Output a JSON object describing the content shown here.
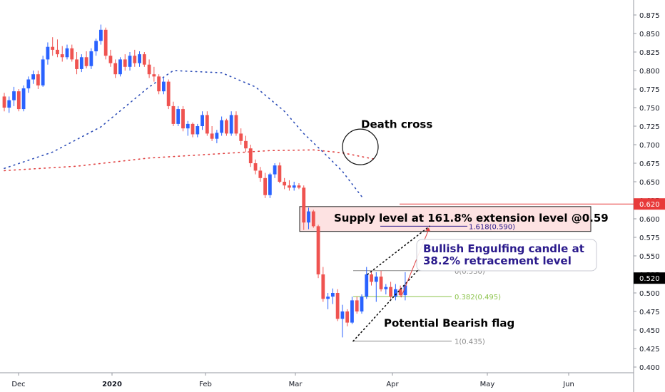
{
  "chart_data": {
    "type": "candlestick",
    "colors": {
      "up": "#2962ff",
      "down": "#ef5350",
      "ma_fast": "#2f4fb8",
      "ma_slow": "#e04040",
      "fib_green": "#8bc34a",
      "fib_gray": "#888888",
      "fib_purple": "#2a1a8c",
      "supply_fill": "#fde2e2",
      "tag_red": "#e83a3a"
    },
    "y_axis": {
      "ticks": [
        "0.875",
        "0.850",
        "0.825",
        "0.800",
        "0.775",
        "0.750",
        "0.725",
        "0.700",
        "0.675",
        "0.650",
        "0.625",
        "0.600",
        "0.575",
        "0.550",
        "0.525",
        "0.500",
        "0.475",
        "0.450",
        "0.425",
        "0.400"
      ],
      "ylim": [
        0.39,
        0.885
      ]
    },
    "x_axis": {
      "ticks": [
        {
          "label": "Dec",
          "bold": false
        },
        {
          "label": "2020",
          "bold": true
        },
        {
          "label": "Feb",
          "bold": false
        },
        {
          "label": "Mar",
          "bold": false
        },
        {
          "label": "Apr",
          "bold": false
        },
        {
          "label": "May",
          "bold": false
        },
        {
          "label": "Jun",
          "bold": false
        }
      ]
    },
    "price_tags": [
      {
        "label": "0.620",
        "value": 0.62,
        "color": "#e83a3a"
      },
      {
        "label": "0.520",
        "value": 0.52,
        "color": "#000000"
      }
    ],
    "candles": [
      [
        0.765,
        0.77,
        0.745,
        0.75
      ],
      [
        0.75,
        0.765,
        0.743,
        0.76
      ],
      [
        0.76,
        0.778,
        0.752,
        0.772
      ],
      [
        0.772,
        0.775,
        0.745,
        0.748
      ],
      [
        0.748,
        0.78,
        0.745,
        0.776
      ],
      [
        0.776,
        0.792,
        0.77,
        0.788
      ],
      [
        0.788,
        0.8,
        0.782,
        0.795
      ],
      [
        0.795,
        0.8,
        0.775,
        0.78
      ],
      [
        0.78,
        0.82,
        0.778,
        0.815
      ],
      [
        0.815,
        0.838,
        0.808,
        0.832
      ],
      [
        0.832,
        0.845,
        0.82,
        0.828
      ],
      [
        0.828,
        0.842,
        0.818,
        0.822
      ],
      [
        0.822,
        0.833,
        0.812,
        0.818
      ],
      [
        0.818,
        0.835,
        0.815,
        0.83
      ],
      [
        0.83,
        0.835,
        0.812,
        0.815
      ],
      [
        0.815,
        0.825,
        0.795,
        0.802
      ],
      [
        0.802,
        0.822,
        0.798,
        0.818
      ],
      [
        0.818,
        0.826,
        0.803,
        0.806
      ],
      [
        0.806,
        0.83,
        0.802,
        0.826
      ],
      [
        0.826,
        0.843,
        0.82,
        0.84
      ],
      [
        0.84,
        0.862,
        0.835,
        0.855
      ],
      [
        0.855,
        0.858,
        0.815,
        0.82
      ],
      [
        0.82,
        0.828,
        0.805,
        0.81
      ],
      [
        0.81,
        0.815,
        0.79,
        0.795
      ],
      [
        0.795,
        0.818,
        0.792,
        0.815
      ],
      [
        0.815,
        0.822,
        0.8,
        0.805
      ],
      [
        0.805,
        0.825,
        0.8,
        0.82
      ],
      [
        0.82,
        0.828,
        0.805,
        0.81
      ],
      [
        0.81,
        0.826,
        0.805,
        0.822
      ],
      [
        0.822,
        0.825,
        0.805,
        0.808
      ],
      [
        0.808,
        0.815,
        0.79,
        0.795
      ],
      [
        0.795,
        0.805,
        0.785,
        0.792
      ],
      [
        0.792,
        0.795,
        0.768,
        0.772
      ],
      [
        0.772,
        0.79,
        0.768,
        0.785
      ],
      [
        0.785,
        0.788,
        0.748,
        0.752
      ],
      [
        0.752,
        0.758,
        0.725,
        0.728
      ],
      [
        0.728,
        0.752,
        0.725,
        0.748
      ],
      [
        0.748,
        0.752,
        0.718,
        0.722
      ],
      [
        0.722,
        0.732,
        0.712,
        0.728
      ],
      [
        0.728,
        0.73,
        0.71,
        0.714
      ],
      [
        0.714,
        0.728,
        0.71,
        0.725
      ],
      [
        0.725,
        0.745,
        0.72,
        0.74
      ],
      [
        0.74,
        0.745,
        0.712,
        0.715
      ],
      [
        0.715,
        0.725,
        0.705,
        0.708
      ],
      [
        0.708,
        0.72,
        0.702,
        0.716
      ],
      [
        0.716,
        0.738,
        0.712,
        0.733
      ],
      [
        0.733,
        0.735,
        0.712,
        0.715
      ],
      [
        0.715,
        0.745,
        0.712,
        0.74
      ],
      [
        0.74,
        0.745,
        0.712,
        0.715
      ],
      [
        0.715,
        0.722,
        0.7,
        0.705
      ],
      [
        0.705,
        0.712,
        0.69,
        0.695
      ],
      [
        0.695,
        0.7,
        0.67,
        0.675
      ],
      [
        0.675,
        0.68,
        0.66,
        0.665
      ],
      [
        0.665,
        0.67,
        0.65,
        0.655
      ],
      [
        0.655,
        0.662,
        0.628,
        0.632
      ],
      [
        0.632,
        0.662,
        0.628,
        0.66
      ],
      [
        0.66,
        0.675,
        0.655,
        0.672
      ],
      [
        0.672,
        0.676,
        0.648,
        0.65
      ],
      [
        0.65,
        0.655,
        0.64,
        0.645
      ],
      [
        0.645,
        0.652,
        0.638,
        0.642
      ],
      [
        0.642,
        0.65,
        0.638,
        0.645
      ],
      [
        0.645,
        0.648,
        0.64,
        0.642
      ],
      [
        0.642,
        0.645,
        0.585,
        0.595
      ],
      [
        0.595,
        0.615,
        0.586,
        0.61
      ],
      [
        0.61,
        0.612,
        0.588,
        0.59
      ],
      [
        0.59,
        0.592,
        0.52,
        0.525
      ],
      [
        0.525,
        0.535,
        0.488,
        0.492
      ],
      [
        0.492,
        0.5,
        0.478,
        0.495
      ],
      [
        0.495,
        0.506,
        0.485,
        0.5
      ],
      [
        0.5,
        0.505,
        0.462,
        0.465
      ],
      [
        0.465,
        0.484,
        0.44,
        0.475
      ],
      [
        0.475,
        0.478,
        0.455,
        0.46
      ],
      [
        0.46,
        0.495,
        0.458,
        0.49
      ],
      [
        0.49,
        0.495,
        0.472,
        0.475
      ],
      [
        0.475,
        0.498,
        0.472,
        0.495
      ],
      [
        0.495,
        0.535,
        0.492,
        0.525
      ],
      [
        0.525,
        0.53,
        0.51,
        0.515
      ],
      [
        0.515,
        0.528,
        0.488,
        0.522
      ],
      [
        0.522,
        0.53,
        0.502,
        0.505
      ],
      [
        0.505,
        0.512,
        0.498,
        0.508
      ],
      [
        0.508,
        0.515,
        0.492,
        0.495
      ],
      [
        0.495,
        0.512,
        0.49,
        0.505
      ],
      [
        0.505,
        0.51,
        0.495,
        0.497
      ],
      [
        0.497,
        0.528,
        0.49,
        0.51
      ]
    ],
    "ma_fast": [
      [
        0,
        0.668
      ],
      [
        10,
        0.69
      ],
      [
        20,
        0.724
      ],
      [
        30,
        0.778
      ],
      [
        35,
        0.8
      ],
      [
        45,
        0.797
      ],
      [
        52,
        0.778
      ],
      [
        58,
        0.745
      ],
      [
        62,
        0.715
      ],
      [
        66,
        0.69
      ],
      [
        70,
        0.664
      ],
      [
        74,
        0.63
      ]
    ],
    "ma_slow": [
      [
        0,
        0.665
      ],
      [
        15,
        0.671
      ],
      [
        30,
        0.682
      ],
      [
        45,
        0.688
      ],
      [
        55,
        0.692
      ],
      [
        64,
        0.693
      ],
      [
        70,
        0.689
      ],
      [
        77,
        0.68
      ]
    ],
    "supply_zone": {
      "top": 0.6165,
      "bottom": 0.583,
      "label": "Supply level at 161.8% extension level @0.59"
    },
    "fib_levels": [
      {
        "label": "1.618(0.590)",
        "value": 0.59
      },
      {
        "label": "0(0.530)",
        "value": 0.53
      },
      {
        "label": "0.382(0.495)",
        "value": 0.495
      },
      {
        "label": "1(0.435)",
        "value": 0.435
      }
    ],
    "annotations": {
      "death_cross": "Death cross",
      "engulfing_line1": "Bullish Engulfing candle at",
      "engulfing_line2": "38.2% retracement level",
      "bearish_flag": "Potential Bearish flag"
    }
  }
}
